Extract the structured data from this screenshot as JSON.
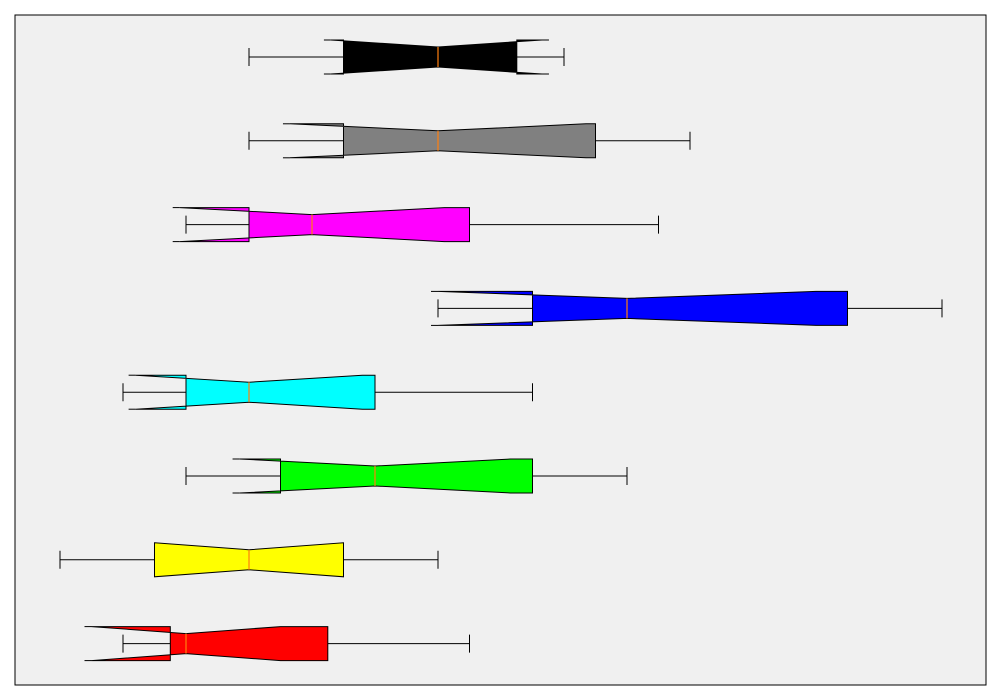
{
  "chart_data": {
    "type": "boxplot",
    "orientation": "horizontal",
    "notched": true,
    "title": "",
    "xlabel": "",
    "ylabel": "",
    "xlim": [
      0,
      15
    ],
    "axes_visible": false,
    "grid": false,
    "legend": "none",
    "background_color": "#f0f0f0",
    "median_color": "#ff7f0e",
    "series": [
      {
        "color": "#000000",
        "whisker_low": 3.0,
        "q1": 4.5,
        "median": 6.0,
        "q3": 7.25,
        "whisker_high": 8.0,
        "notch_low": 4.3,
        "notch_high": 7.65
      },
      {
        "color": "#808080",
        "whisker_low": 3.0,
        "q1": 4.5,
        "median": 6.0,
        "q3": 8.5,
        "whisker_high": 10.0,
        "notch_low": 3.65,
        "notch_high": 8.35
      },
      {
        "color": "#ff00ff",
        "whisker_low": 2.0,
        "q1": 3.0,
        "median": 4.0,
        "q3": 6.5,
        "whisker_high": 9.5,
        "notch_low": 1.9,
        "notch_high": 6.1
      },
      {
        "color": "#0000ff",
        "whisker_low": 6.0,
        "q1": 7.5,
        "median": 9.0,
        "q3": 12.5,
        "whisker_high": 14.0,
        "notch_low": 6.0,
        "notch_high": 12.0
      },
      {
        "color": "#00ffff",
        "whisker_low": 1.0,
        "q1": 2.0,
        "median": 3.0,
        "q3": 5.0,
        "whisker_high": 7.5,
        "notch_low": 1.2,
        "notch_high": 4.8
      },
      {
        "color": "#00ff00",
        "whisker_low": 2.0,
        "q1": 3.5,
        "median": 5.0,
        "q3": 7.5,
        "whisker_high": 9.0,
        "notch_low": 2.85,
        "notch_high": 7.15
      },
      {
        "color": "#ffff00",
        "whisker_low": 0.0,
        "q1": 1.5,
        "median": 3.0,
        "q3": 4.5,
        "whisker_high": 6.0,
        "notch_low": 1.5,
        "notch_high": 4.5
      },
      {
        "color": "#ff0000",
        "whisker_low": 1.0,
        "q1": 1.75,
        "median": 2.0,
        "q3": 4.25,
        "whisker_high": 6.5,
        "notch_low": 0.5,
        "notch_high": 3.5
      }
    ]
  }
}
